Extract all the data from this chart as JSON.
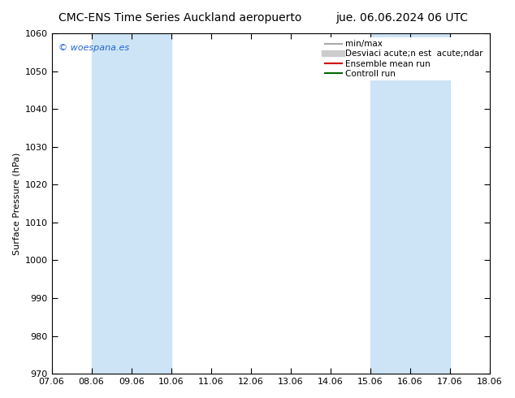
{
  "title": "CMC-ENS Time Series Auckland aeropuerto",
  "date_label": "jue. 06.06.2024 06 UTC",
  "ylabel": "Surface Pressure (hPa)",
  "ylim": [
    970,
    1060
  ],
  "yticks": [
    970,
    980,
    990,
    1000,
    1010,
    1020,
    1030,
    1040,
    1050,
    1060
  ],
  "x_labels": [
    "07.06",
    "08.06",
    "09.06",
    "10.06",
    "11.06",
    "12.06",
    "13.06",
    "14.06",
    "15.06",
    "16.06",
    "17.06",
    "18.06"
  ],
  "x_positions": [
    0,
    1,
    2,
    3,
    4,
    5,
    6,
    7,
    8,
    9,
    10,
    11
  ],
  "shade_bands": [
    {
      "xmin": 1.0,
      "xmax": 3.0
    },
    {
      "xmin": 8.0,
      "xmax": 10.0
    }
  ],
  "shade_color": "#cce4f5",
  "watermark": "© woespana.es",
  "legend_entries": [
    {
      "label": "min/max",
      "color": "#aaaaaa",
      "lw": 1.5
    },
    {
      "label": "Desviaci acute;n est  acute;ndar",
      "color": "#cccccc",
      "lw": 6
    },
    {
      "label": "Ensemble mean run",
      "color": "#cc0000",
      "lw": 1.5
    },
    {
      "label": "Controll run",
      "color": "#006600",
      "lw": 1.5
    }
  ],
  "background_color": "#ffffff",
  "plot_bg_color": "#ffffff",
  "title_fontsize": 10,
  "axis_fontsize": 8,
  "tick_fontsize": 8,
  "legend_fontsize": 7.5
}
